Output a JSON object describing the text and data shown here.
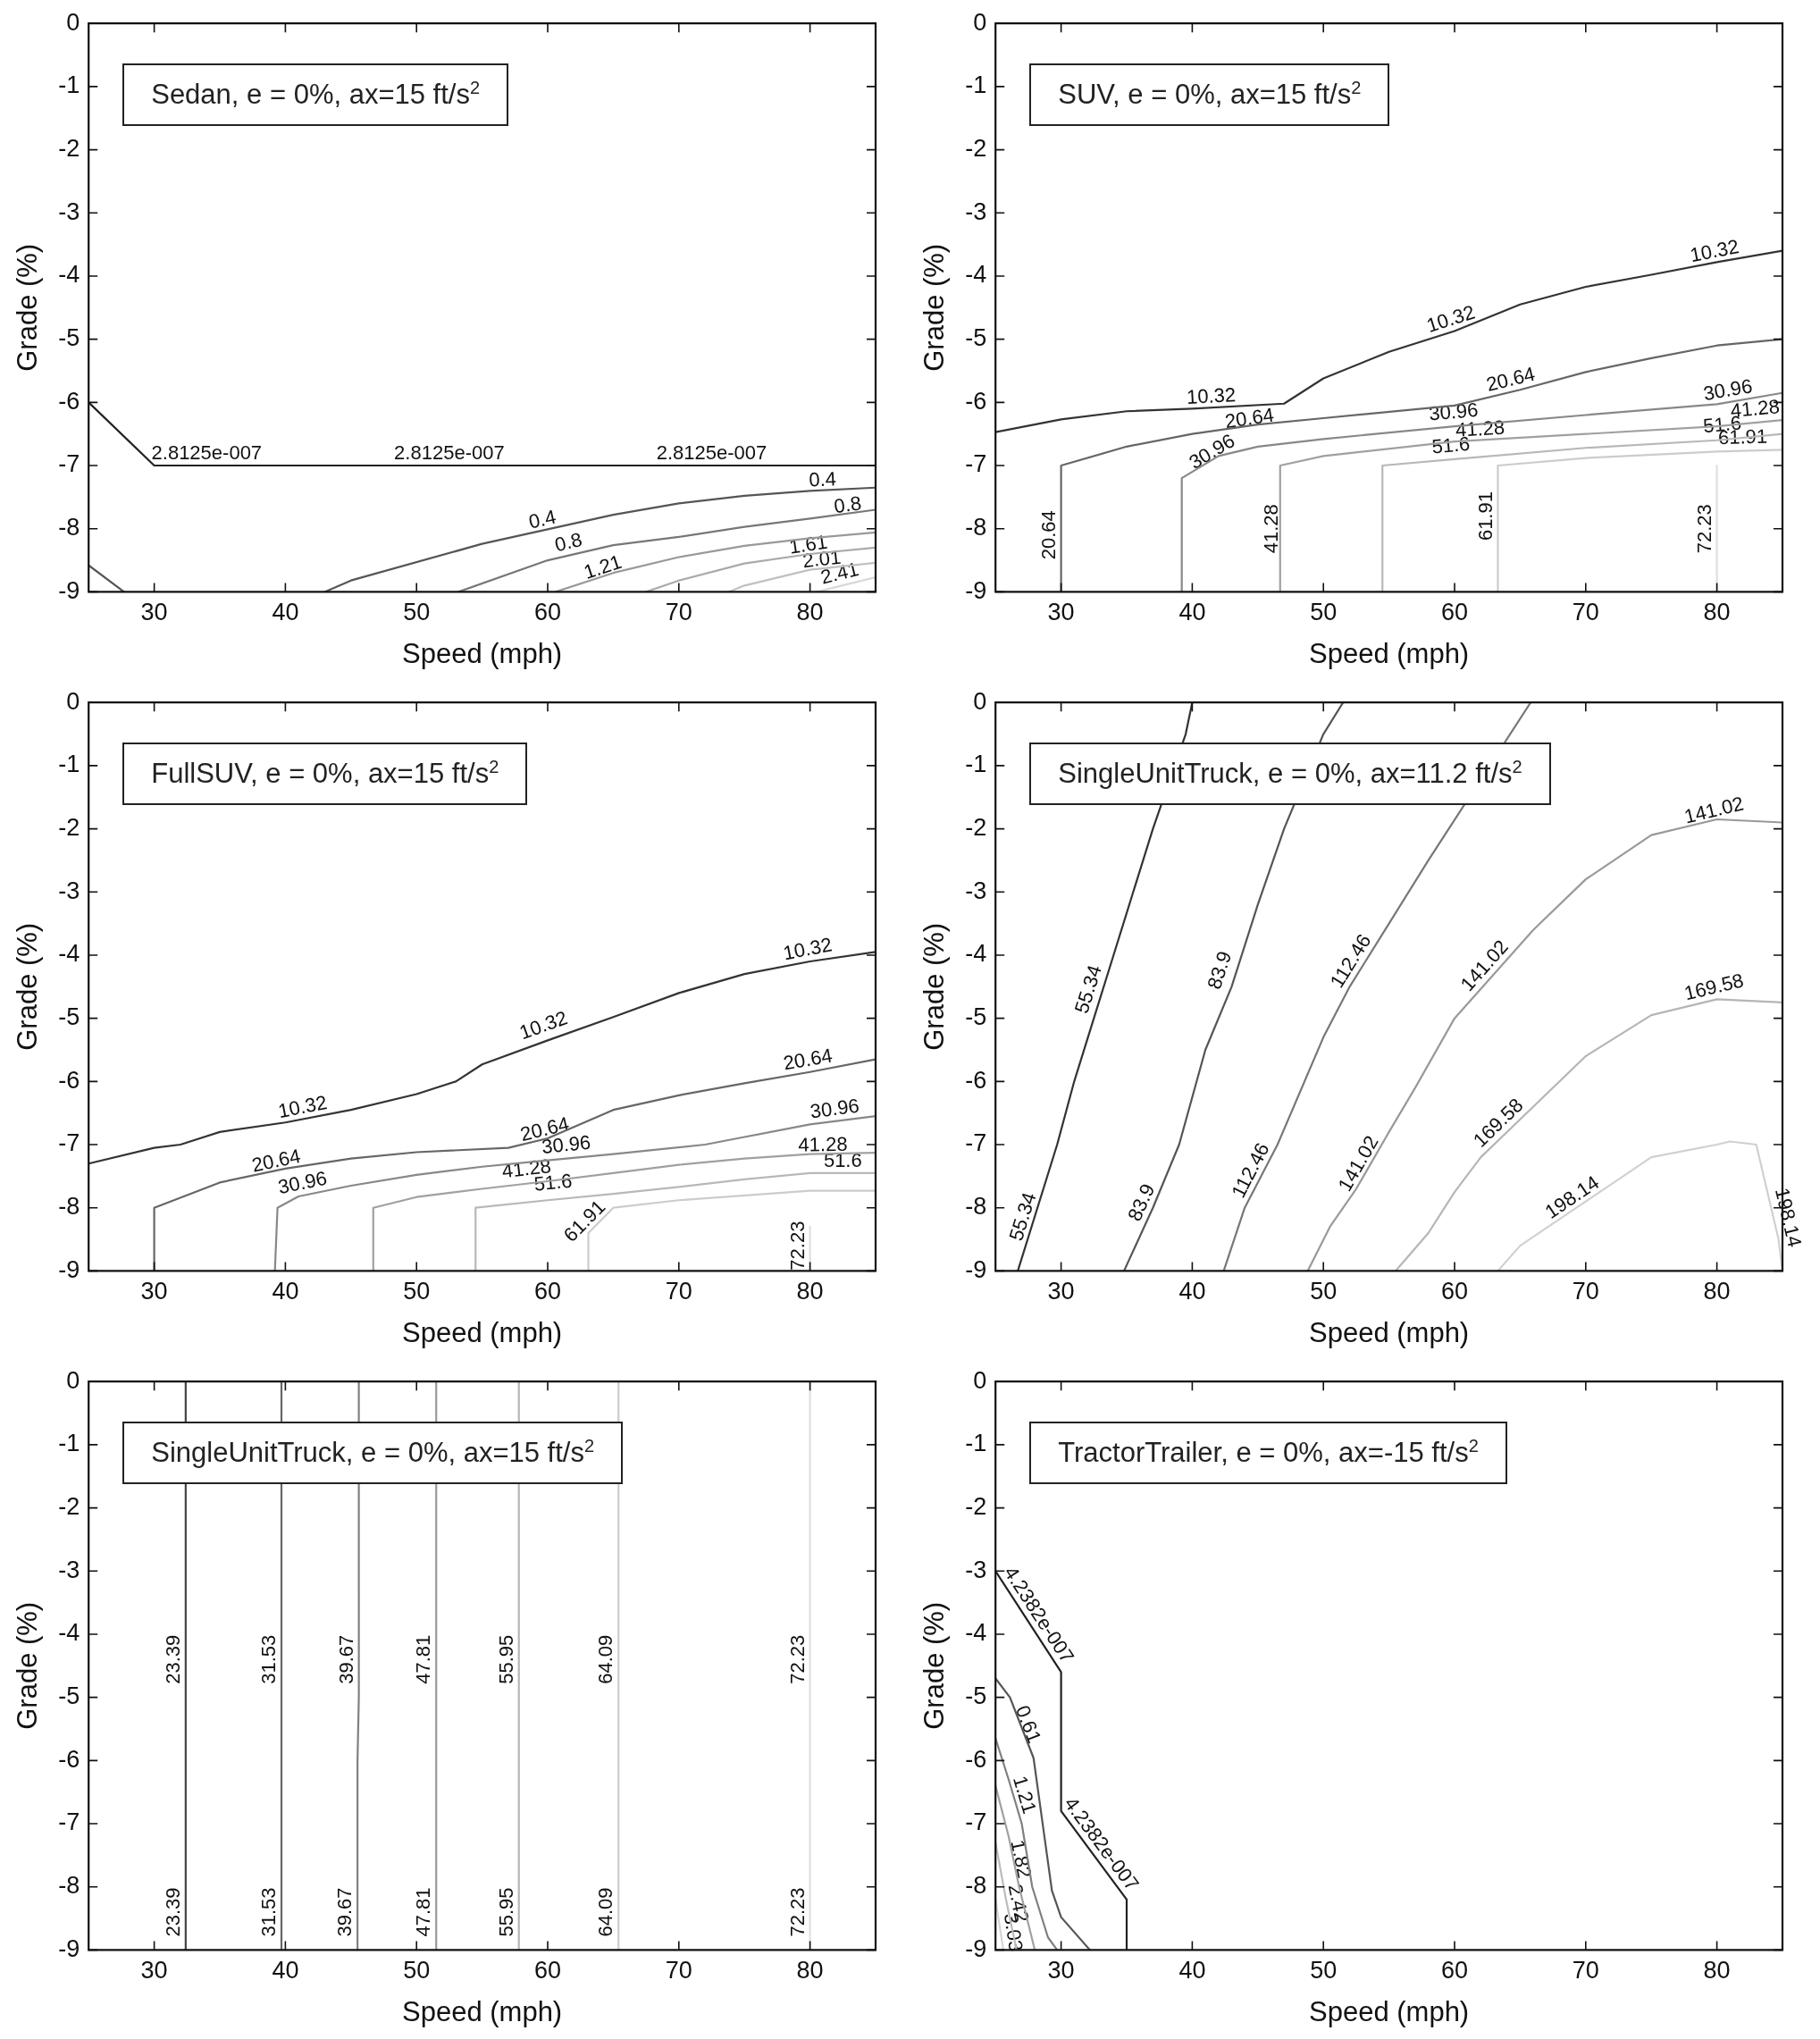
{
  "chart_data": [
    {
      "type": "line",
      "title": "Sedan, e = 0%, ax=15 ft/s$^{2}$",
      "xlabel": "Speed (mph)",
      "ylabel": "Grade (%)",
      "xlim": [
        25,
        85
      ],
      "xticks": [
        30,
        40,
        50,
        60,
        70,
        80
      ],
      "ylim": [
        -9,
        0
      ],
      "yticks": [
        0,
        -1,
        -2,
        -3,
        -4,
        -5,
        -6,
        -7,
        -8,
        -9
      ],
      "grid": false,
      "legend": false,
      "marker": "none",
      "line_style": "solid",
      "series": [
        {
          "color": "#222222",
          "x": [
            25,
            30,
            85
          ],
          "values": [
            -6,
            -7,
            -7
          ]
        },
        {
          "color": "#555555",
          "x": [
            25,
            27.7
          ],
          "values": [
            -8.58,
            -9
          ]
        },
        {
          "color": "#555555",
          "x": [
            43,
            45,
            55,
            65,
            70,
            75,
            80,
            85
          ],
          "values": [
            -9,
            -8.82,
            -8.24,
            -7.78,
            -7.6,
            -7.48,
            -7.4,
            -7.35
          ]
        },
        {
          "color": "#777777",
          "x": [
            53.2,
            60,
            65,
            70,
            75,
            80,
            85
          ],
          "values": [
            -9,
            -8.5,
            -8.26,
            -8.13,
            -7.97,
            -7.84,
            -7.7
          ]
        },
        {
          "color": "#999999",
          "x": [
            60.6,
            65,
            70,
            75,
            80,
            85
          ],
          "values": [
            -9,
            -8.7,
            -8.45,
            -8.27,
            -8.15,
            -8.06
          ]
        },
        {
          "color": "#aaaaaa",
          "x": [
            67.5,
            70,
            75,
            80,
            85
          ],
          "values": [
            -9,
            -8.82,
            -8.55,
            -8.4,
            -8.3
          ]
        },
        {
          "color": "#c0c0c0",
          "x": [
            73.8,
            75,
            80,
            85
          ],
          "values": [
            -9,
            -8.9,
            -8.65,
            -8.54
          ]
        },
        {
          "color": "#d8d8d8",
          "x": [
            80.5,
            85
          ],
          "values": [
            -9,
            -8.77
          ]
        }
      ],
      "annotations": [
        {
          "text": "2.8125e-007",
          "x": 34,
          "y": -7
        },
        {
          "text": "2.8125e-007",
          "x": 52.5,
          "y": -7
        },
        {
          "text": "2.8125e-007",
          "x": 72.5,
          "y": -7
        },
        {
          "text": "0.4",
          "x": 59.8,
          "y": -8.05
        },
        {
          "text": "0.4",
          "x": 81,
          "y": -7.42
        },
        {
          "text": "0.8",
          "x": 61.8,
          "y": -8.41
        },
        {
          "text": "0.8",
          "x": 83,
          "y": -7.82
        },
        {
          "text": "1.21",
          "x": 64.5,
          "y": -8.8
        },
        {
          "text": "1.61",
          "x": 80,
          "y": -8.45
        },
        {
          "text": "2.01",
          "x": 81,
          "y": -8.68
        },
        {
          "text": "2.41",
          "x": 82.5,
          "y": -8.9
        }
      ]
    },
    {
      "type": "line",
      "title": "SUV, e = 0%, ax=15 ft/s$^{2}$",
      "xlabel": "Speed (mph)",
      "ylabel": "Grade (%)",
      "xlim": [
        25,
        85
      ],
      "xticks": [
        30,
        40,
        50,
        60,
        70,
        80
      ],
      "ylim": [
        -9,
        0
      ],
      "yticks": [
        0,
        -1,
        -2,
        -3,
        -4,
        -5,
        -6,
        -7,
        -8,
        -9
      ],
      "grid": false,
      "legend": false,
      "marker": "none",
      "line_style": "solid",
      "series": [
        {
          "color": "#333333",
          "x": [
            25,
            30,
            35,
            40,
            47,
            50,
            55,
            60,
            65,
            70,
            75,
            80,
            85
          ],
          "values": [
            -6.47,
            -6.27,
            -6.14,
            -6.1,
            -6.02,
            -5.62,
            -5.2,
            -4.87,
            -4.45,
            -4.17,
            -3.98,
            -3.78,
            -3.6
          ]
        },
        {
          "color": "#666666",
          "x": [
            30,
            30,
            35,
            40,
            45,
            50,
            60,
            65,
            70,
            75,
            80,
            85
          ],
          "values": [
            -9,
            -7,
            -6.7,
            -6.5,
            -6.35,
            -6.25,
            -6.05,
            -5.8,
            -5.52,
            -5.3,
            -5.1,
            -5
          ]
        },
        {
          "color": "#888888",
          "x": [
            39.2,
            39.2,
            42,
            45,
            50,
            60,
            70,
            80,
            85
          ],
          "values": [
            -9,
            -7.2,
            -6.85,
            -6.7,
            -6.58,
            -6.38,
            -6.2,
            -6.03,
            -5.85
          ]
        },
        {
          "color": "#a0a0a0",
          "x": [
            46.7,
            46.7,
            50,
            60,
            70,
            80,
            85
          ],
          "values": [
            -9,
            -7,
            -6.85,
            -6.62,
            -6.5,
            -6.38,
            -6.28
          ]
        },
        {
          "color": "#b8b8b8",
          "x": [
            54.5,
            54.5,
            60,
            70,
            80,
            85
          ],
          "values": [
            -9,
            -7,
            -6.9,
            -6.72,
            -6.6,
            -6.5
          ]
        },
        {
          "color": "#cccccc",
          "x": [
            63.3,
            63.3,
            70,
            80,
            85
          ],
          "values": [
            -9,
            -7,
            -6.88,
            -6.78,
            -6.75
          ]
        },
        {
          "color": "#e0e0e0",
          "x": [
            80,
            80
          ],
          "values": [
            -9,
            -7
          ]
        }
      ],
      "annotations": [
        {
          "text": "10.32",
          "x": 41.5,
          "y": -6.1
        },
        {
          "text": "10.32",
          "x": 60,
          "y": -4.87
        },
        {
          "text": "10.32",
          "x": 80,
          "y": -3.8
        },
        {
          "text": "20.64",
          "x": 44.5,
          "y": -6.45
        },
        {
          "text": "20.64",
          "x": 64.5,
          "y": -5.83
        },
        {
          "text": "20.64",
          "x": 30,
          "y": -8.1
        },
        {
          "text": "30.96",
          "x": 42,
          "y": -6.95
        },
        {
          "text": "30.96",
          "x": 60,
          "y": -6.35
        },
        {
          "text": "30.96",
          "x": 81,
          "y": -6.0
        },
        {
          "text": "41.28",
          "x": 47,
          "y": -8.0
        },
        {
          "text": "41.28",
          "x": 62,
          "y": -6.62
        },
        {
          "text": "41.28",
          "x": 83,
          "y": -6.3
        },
        {
          "text": "51.6",
          "x": 59.8,
          "y": -6.88
        },
        {
          "text": "51.6",
          "x": 80.5,
          "y": -6.55
        },
        {
          "text": "61.91",
          "x": 63.3,
          "y": -7.8
        },
        {
          "text": "61.91",
          "x": 82,
          "y": -6.75
        },
        {
          "text": "72.23",
          "x": 80,
          "y": -8.0
        }
      ]
    },
    {
      "type": "line",
      "title": "FullSUV, e = 0%, ax=15 ft/s$^{2}$",
      "xlabel": "Speed (mph)",
      "ylabel": "Grade (%)",
      "xlim": [
        25,
        85
      ],
      "xticks": [
        30,
        40,
        50,
        60,
        70,
        80
      ],
      "ylim": [
        -9,
        0
      ],
      "yticks": [
        0,
        -1,
        -2,
        -3,
        -4,
        -5,
        -6,
        -7,
        -8,
        -9
      ],
      "grid": false,
      "legend": false,
      "marker": "none",
      "line_style": "solid",
      "series": [
        {
          "color": "#333333",
          "x": [
            25,
            30,
            32,
            35,
            40,
            45,
            50,
            53,
            55,
            60,
            65,
            70,
            75,
            80,
            85
          ],
          "values": [
            -7.3,
            -7.05,
            -7,
            -6.8,
            -6.65,
            -6.45,
            -6.2,
            -6,
            -5.73,
            -5.35,
            -4.98,
            -4.6,
            -4.3,
            -4.1,
            -3.95
          ]
        },
        {
          "color": "#666666",
          "x": [
            30,
            30,
            35,
            40,
            45,
            50,
            57,
            60,
            65,
            70,
            75,
            80,
            85
          ],
          "values": [
            -9,
            -8,
            -7.6,
            -7.38,
            -7.22,
            -7.12,
            -7.05,
            -6.9,
            -6.45,
            -6.22,
            -6.03,
            -5.85,
            -5.65
          ]
        },
        {
          "color": "#888888",
          "x": [
            39.2,
            39.4,
            41,
            45,
            50,
            55,
            60,
            65,
            72,
            75,
            80,
            85
          ],
          "values": [
            -9,
            -8,
            -7.82,
            -7.65,
            -7.48,
            -7.35,
            -7.25,
            -7.15,
            -7,
            -6.88,
            -6.68,
            -6.55
          ]
        },
        {
          "color": "#a0a0a0",
          "x": [
            46.7,
            46.7,
            50,
            55,
            60,
            65,
            70,
            75,
            80,
            85
          ],
          "values": [
            -9,
            -8,
            -7.83,
            -7.7,
            -7.58,
            -7.45,
            -7.32,
            -7.22,
            -7.15,
            -7.13
          ]
        },
        {
          "color": "#b8b8b8",
          "x": [
            54.5,
            54.5,
            60,
            65,
            70,
            75,
            80,
            85
          ],
          "values": [
            -9,
            -8,
            -7.88,
            -7.78,
            -7.67,
            -7.55,
            -7.45,
            -7.45
          ]
        },
        {
          "color": "#cccccc",
          "x": [
            63.1,
            63.1,
            65,
            70,
            80,
            85
          ],
          "values": [
            -9,
            -8.4,
            -8,
            -7.88,
            -7.73,
            -7.73
          ]
        },
        {
          "color": "#e0e0e0",
          "x": [
            80,
            80
          ],
          "values": [
            -9,
            -8.3
          ]
        }
      ],
      "annotations": [
        {
          "text": "10.32",
          "x": 41.5,
          "y": -6.6
        },
        {
          "text": "10.32",
          "x": 60,
          "y": -5.3
        },
        {
          "text": "10.32",
          "x": 80,
          "y": -4.1
        },
        {
          "text": "20.64",
          "x": 39.5,
          "y": -7.45
        },
        {
          "text": "20.64",
          "x": 60,
          "y": -6.95
        },
        {
          "text": "20.64",
          "x": 80,
          "y": -5.85
        },
        {
          "text": "30.96",
          "x": 41.5,
          "y": -7.8
        },
        {
          "text": "30.96",
          "x": 61.5,
          "y": -7.2
        },
        {
          "text": "30.96",
          "x": 82,
          "y": -6.63
        },
        {
          "text": "41.28",
          "x": 58.5,
          "y": -7.58
        },
        {
          "text": "41.28",
          "x": 81,
          "y": -7.2
        },
        {
          "text": "51.6",
          "x": 60.5,
          "y": -7.8
        },
        {
          "text": "51.6",
          "x": 82.5,
          "y": -7.45
        },
        {
          "text": "61.91",
          "x": 63.5,
          "y": -8.35
        },
        {
          "text": "72.23",
          "x": 80,
          "y": -8.6
        }
      ]
    },
    {
      "type": "line",
      "title": "SingleUnitTruck, e = 0%, ax=11.2 ft/s$^{2}$",
      "xlabel": "Speed (mph)",
      "ylabel": "Grade (%)",
      "xlim": [
        25,
        85
      ],
      "xticks": [
        30,
        40,
        50,
        60,
        70,
        80
      ],
      "ylim": [
        -9,
        0
      ],
      "yticks": [
        0,
        -1,
        -2,
        -3,
        -4,
        -5,
        -6,
        -7,
        -8,
        -9
      ],
      "grid": false,
      "legend": false,
      "marker": "none",
      "line_style": "solid",
      "series": [
        {
          "color": "#333333",
          "x": [
            26.7,
            29.7,
            31,
            32.5,
            34,
            35.5,
            37,
            39.5,
            40
          ],
          "values": [
            -9,
            -7,
            -6,
            -5,
            -4,
            -3,
            -2,
            -0.5,
            0
          ]
        },
        {
          "color": "#555555",
          "x": [
            34.8,
            37,
            39,
            41,
            43,
            45,
            47,
            50,
            51.5
          ],
          "values": [
            -9,
            -8,
            -7,
            -5.5,
            -4.5,
            -3.2,
            -2,
            -0.5,
            0
          ]
        },
        {
          "color": "#777777",
          "x": [
            42.4,
            44,
            46.5,
            50,
            52,
            55,
            58,
            65.8
          ],
          "values": [
            -9,
            -8,
            -7,
            -5.3,
            -4.5,
            -3.5,
            -2.5,
            0
          ]
        },
        {
          "color": "#999999",
          "x": [
            48.8,
            50.5,
            52.5,
            55,
            57,
            60,
            63,
            66,
            70,
            75,
            80,
            85
          ],
          "values": [
            -9,
            -8.3,
            -7.7,
            -6.8,
            -6.1,
            -5,
            -4.3,
            -3.6,
            -2.8,
            -2.1,
            -1.85,
            -1.9
          ]
        },
        {
          "color": "#b5b5b5",
          "x": [
            55.5,
            58,
            60,
            62,
            65,
            70,
            75,
            80,
            85
          ],
          "values": [
            -9,
            -8.4,
            -7.75,
            -7.2,
            -6.6,
            -5.6,
            -4.95,
            -4.7,
            -4.75
          ]
        },
        {
          "color": "#d0d0d0",
          "x": [
            63.3,
            65,
            70,
            75,
            80,
            81,
            83,
            84.7,
            85
          ],
          "values": [
            -9,
            -8.6,
            -7.9,
            -7.2,
            -7,
            -6.95,
            -7,
            -8.5,
            -9
          ]
        }
      ],
      "annotations": [
        {
          "text": "55.34",
          "x": 33,
          "y": -4.6
        },
        {
          "text": "55.34",
          "x": 28,
          "y": -8.2
        },
        {
          "text": "83.9",
          "x": 43,
          "y": -4.3
        },
        {
          "text": "83.9",
          "x": 37,
          "y": -8
        },
        {
          "text": "112.46",
          "x": 52.9,
          "y": -4.2
        },
        {
          "text": "112.46",
          "x": 45.3,
          "y": -7.5
        },
        {
          "text": "141.02",
          "x": 63,
          "y": -4.3
        },
        {
          "text": "141.02",
          "x": 53.5,
          "y": -7.4
        },
        {
          "text": "141.02",
          "x": 80,
          "y": -1.9
        },
        {
          "text": "169.58",
          "x": 64,
          "y": -6.8
        },
        {
          "text": "169.58",
          "x": 80,
          "y": -4.7
        },
        {
          "text": "198.14",
          "x": 69.5,
          "y": -8.0
        },
        {
          "text": "198.14",
          "x": 84.5,
          "y": -8.2
        }
      ]
    },
    {
      "type": "line",
      "title": "SingleUnitTruck, e = 0%, ax=15 ft/s$^{2}$",
      "xlabel": "Speed (mph)",
      "ylabel": "Grade (%)",
      "xlim": [
        25,
        85
      ],
      "xticks": [
        30,
        40,
        50,
        60,
        70,
        80
      ],
      "ylim": [
        -9,
        0
      ],
      "yticks": [
        0,
        -1,
        -2,
        -3,
        -4,
        -5,
        -6,
        -7,
        -8,
        -9
      ],
      "grid": false,
      "legend": false,
      "marker": "none",
      "line_style": "solid",
      "series": [
        {
          "color": "#444444",
          "x": [
            32.4,
            32.4
          ],
          "values": [
            0,
            -9
          ]
        },
        {
          "color": "#666666",
          "x": [
            39.7,
            39.7
          ],
          "values": [
            0,
            -9
          ]
        },
        {
          "color": "#808080",
          "x": [
            45.6,
            45.6,
            45.5,
            45.5
          ],
          "values": [
            0,
            -5,
            -6,
            -9
          ]
        },
        {
          "color": "#999999",
          "x": [
            51.5,
            51.5
          ],
          "values": [
            0,
            -9
          ]
        },
        {
          "color": "#b5b5b5",
          "x": [
            57.8,
            57.8
          ],
          "values": [
            0,
            -9
          ]
        },
        {
          "color": "#cccccc",
          "x": [
            65.4,
            65.4
          ],
          "values": [
            0,
            -9
          ]
        },
        {
          "color": "#e0e0e0",
          "x": [
            80,
            80
          ],
          "values": [
            0,
            -9
          ]
        }
      ],
      "annotations": [
        {
          "text": "23.39",
          "x": 32.4,
          "y": -4.4
        },
        {
          "text": "23.39",
          "x": 32.4,
          "y": -8.4
        },
        {
          "text": "31.53",
          "x": 39.7,
          "y": -4.4
        },
        {
          "text": "31.53",
          "x": 39.7,
          "y": -8.4
        },
        {
          "text": "39.67",
          "x": 45.6,
          "y": -4.4
        },
        {
          "text": "39.67",
          "x": 45.5,
          "y": -8.4
        },
        {
          "text": "47.81",
          "x": 51.5,
          "y": -4.4
        },
        {
          "text": "47.81",
          "x": 51.5,
          "y": -8.4
        },
        {
          "text": "55.95",
          "x": 57.8,
          "y": -4.4
        },
        {
          "text": "55.95",
          "x": 57.8,
          "y": -8.4
        },
        {
          "text": "64.09",
          "x": 65.4,
          "y": -4.4
        },
        {
          "text": "64.09",
          "x": 65.4,
          "y": -8.4
        },
        {
          "text": "72.23",
          "x": 80,
          "y": -4.4
        },
        {
          "text": "72.23",
          "x": 80,
          "y": -8.4
        }
      ]
    },
    {
      "type": "line",
      "title": "TractorTrailer, e = 0%, ax=-15 ft/s$^{2}$",
      "xlabel": "Speed (mph)",
      "ylabel": "Grade (%)",
      "xlim": [
        25,
        85
      ],
      "xticks": [
        30,
        40,
        50,
        60,
        70,
        80
      ],
      "ylim": [
        -9,
        0
      ],
      "yticks": [
        0,
        -1,
        -2,
        -3,
        -4,
        -5,
        -6,
        -7,
        -8,
        -9
      ],
      "grid": false,
      "legend": false,
      "marker": "none",
      "line_style": "solid",
      "series": [
        {
          "color": "#222222",
          "x": [
            25,
            30,
            30,
            35,
            35
          ],
          "values": [
            -3,
            -4.6,
            -6.8,
            -8.2,
            -9
          ]
        },
        {
          "color": "#555555",
          "x": [
            25,
            26.1,
            27.9,
            29.3,
            30,
            32.2
          ],
          "values": [
            -4.7,
            -5,
            -5.96,
            -8.06,
            -8.48,
            -9
          ]
        },
        {
          "color": "#808080",
          "x": [
            25,
            26,
            27,
            27.8,
            29,
            29.7
          ],
          "values": [
            -5.65,
            -6.3,
            -7,
            -8,
            -8.8,
            -9
          ]
        },
        {
          "color": "#a0a0a0",
          "x": [
            25,
            26,
            26.8,
            28
          ],
          "values": [
            -6.4,
            -7.2,
            -8,
            -9
          ]
        },
        {
          "color": "#bbbbbb",
          "x": [
            25,
            25.8,
            26.6
          ],
          "values": [
            -7.3,
            -8.2,
            -9
          ]
        },
        {
          "color": "#d5d5d5",
          "x": [
            25,
            25.6
          ],
          "values": [
            -8.2,
            -9
          ]
        }
      ],
      "annotations": [
        {
          "text": "4.2382e-007",
          "x": 27.5,
          "y": -3.8
        },
        {
          "text": "4.2382e-007",
          "x": 32.3,
          "y": -7.44
        },
        {
          "text": "0.61",
          "x": 26.6,
          "y": -5.5
        },
        {
          "text": "1.21",
          "x": 26.3,
          "y": -6.6
        },
        {
          "text": "1.82",
          "x": 26,
          "y": -7.6
        },
        {
          "text": "2.42",
          "x": 25.8,
          "y": -8.3
        },
        {
          "text": "3.03",
          "x": 25.4,
          "y": -8.75
        }
      ]
    }
  ]
}
